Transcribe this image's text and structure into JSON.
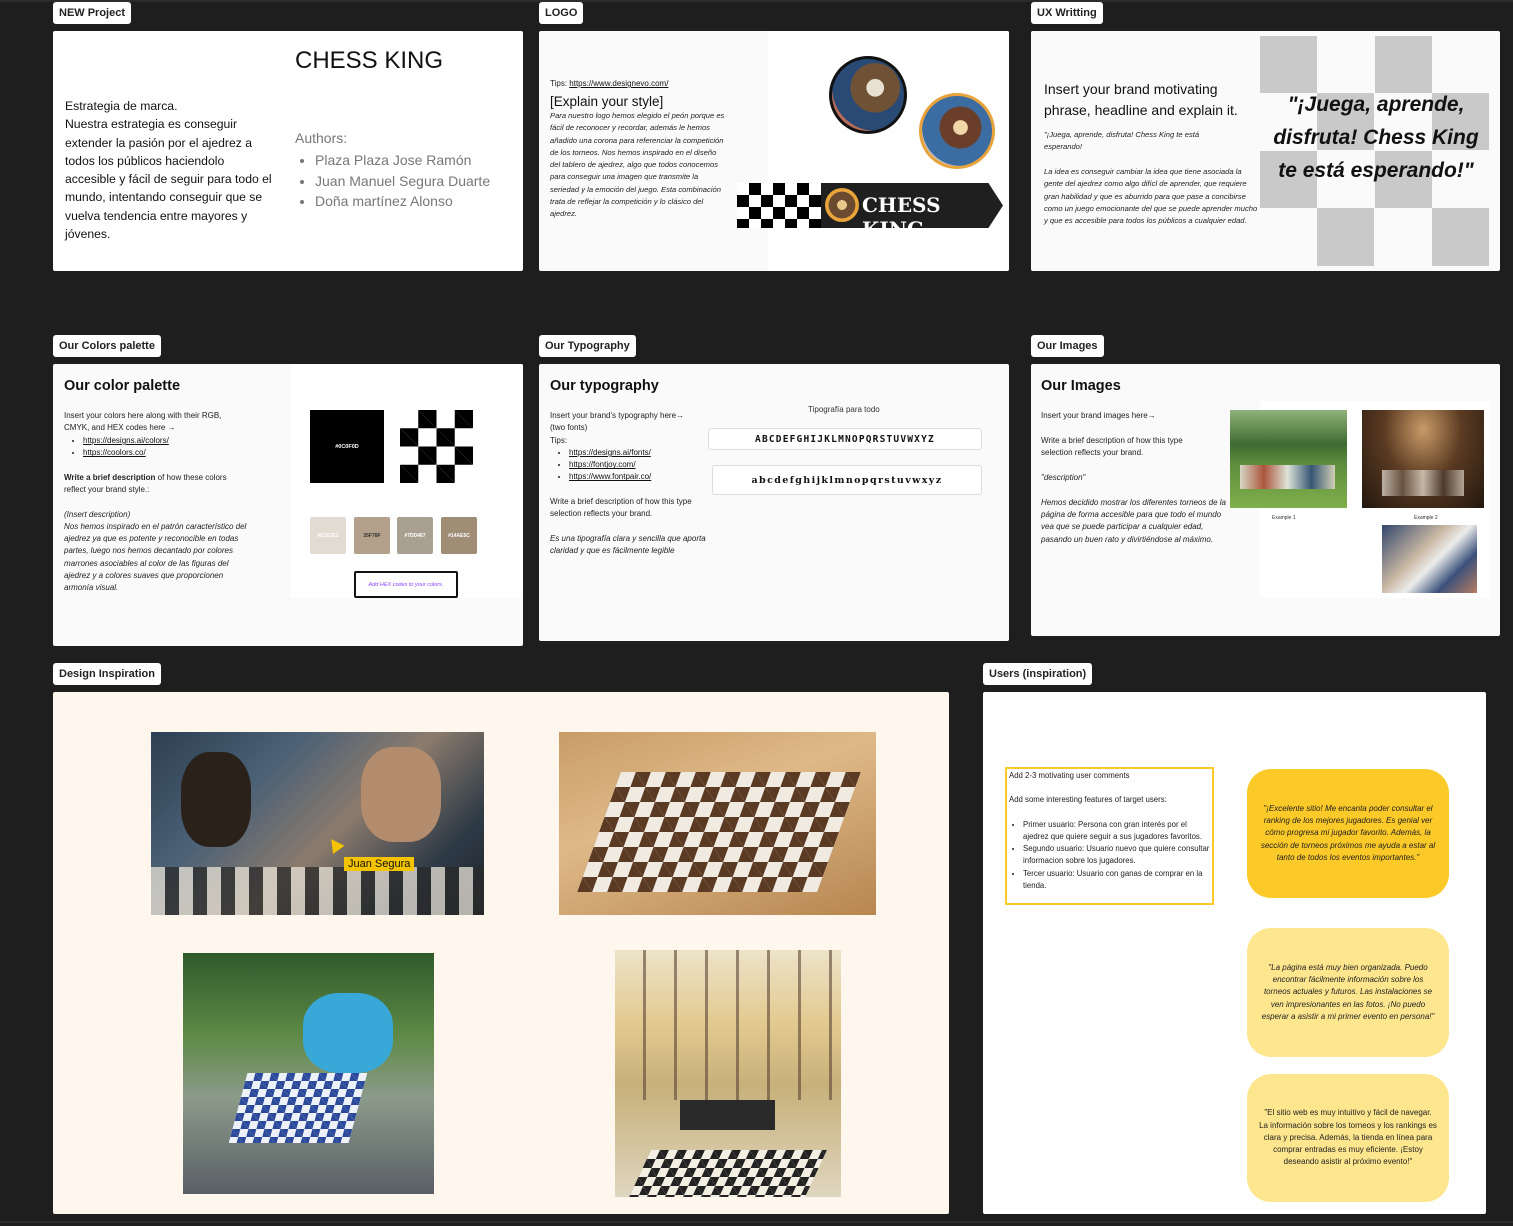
{
  "frames": {
    "new_project": {
      "label": "NEW Project",
      "title": "CHESS KING",
      "strategy_heading": "Estrategia de marca.",
      "strategy_body": "Nuestra estrategia es conseguir extender la pasión por el ajedrez a todos los públicos haciendolo accesible y fácil de seguir para todo el mundo, intentando conseguir que se vuelva tendencia entre mayores y jóvenes.",
      "authors_label": "Authors:",
      "authors": [
        "Plaza Plaza Jose Ramón",
        "Juan Manuel Segura Duarte",
        "Doña martínez Alonso"
      ]
    },
    "logo": {
      "label": "LOGO",
      "tips_prefix": "Tips: ",
      "tips_link": "https://www.designevo.com/",
      "heading": "[Explain your style]",
      "body": "Para nuestro logo hemos elegido el peón porque es fácil de reconocer y recordar, además le hemos añadido  una corona para referenciar la competición de los torneos. Nos hemos  inspirado en el  diseño del tablero de ajedrez, algo que todos conocemos para conseguir una imagen que transmite la seriedad y la emoción del juego. Esta combinación trata de reflejar la competición y lo clásico del ajedrez.",
      "banner_text": "CHESS KING"
    },
    "ux": {
      "label": "UX Writting",
      "heading": "Insert your brand motivating phrase, headline and explain it.",
      "quote_small": "\"¡Juega, aprende, disfruta! Chess King te está esperando!",
      "explanation": "La idea es conseguir cambiar la idea que tiene asociada la gente del ajedrez como algo difícl de aprender, que requiere gran habilidad y que es aburrido para que pase a concibirse como un juego emocionante del que se puede aprender mucho y que es accesible para todos los públicos a cualquier edad.",
      "big_quote": "\"¡Juega, aprende, disfruta! Chess King te está esperando!\""
    },
    "colors": {
      "label": "Our Colors palette",
      "title": "Our color palette",
      "intro": "Insert your colors here along with their RGB, CMYK, and HEX codes here →",
      "links": [
        "https://designs.ai/colors/",
        "https://coolors.co/"
      ],
      "write_bold": "Write a brief description",
      "write_rest": " of how these colors reflect your brand style.:",
      "insert_desc": "(Insert description)",
      "description": "Nos hemos inspirado en el patrón característico del ajedrez ya que es potente y reconocible en todas partes, luego nos hemos decantado por colores marrones asociables al color de las figuras del ajedrez y a colores suaves que proporcionen armonía visual.",
      "main_swatch": "#0C0F0D",
      "main_swatch_color": "#000000",
      "swatches": [
        {
          "code": "#E1E1E1",
          "color": "#e1dbd2"
        },
        {
          "code": "35F78F",
          "color": "#b3a08a"
        },
        {
          "code": "#7DD467",
          "color": "#aaa092"
        },
        {
          "code": "#14AE5C",
          "color": "#9f8d76"
        }
      ],
      "hex_button": "Add HEX codes to your colors."
    },
    "typography": {
      "label": "Our Typography",
      "title": "Our typography",
      "intro": "Insert your brand's typography here→ (two fonts)",
      "tips": "Tips:",
      "links": [
        "https://designs.ai/fonts/",
        "https://fontjoy.com/",
        "https://www.fontpair.co/"
      ],
      "write": "Write a brief description of how this type selection reflects your brand.",
      "desc": "Es una tipografía clara y sencilla que aporta claridad  y que es fácilmente legible",
      "sample_title": "Tipografía para todo",
      "upper": "ABCDEFGHIJKLMNOPQRSTUVWXYZ",
      "lower": "abcdefghijklmnopqrstuvwxyz"
    },
    "images": {
      "label": "Our Images",
      "title": "Our Images",
      "intro": "Insert your brand images here→",
      "write": "Write a brief description of how this type selection reflects your brand.",
      "desc_label": "\"description\"",
      "desc": "Hemos decidido mostrar los diferentes torneos de la página de forma accesible para que todo el mundo vea que se puede participar a cualquier edad, pasando un buen rato y divirtiéndose al máximo.",
      "example1": "Example 1",
      "example2": "Example 2"
    },
    "design": {
      "label": "Design Inspiration",
      "cursor_name": "Juan Segura"
    },
    "users": {
      "label": "Users (inspiration)",
      "box_line1": "Add 2-3 motivating user comments",
      "box_line2": "Add some interesting features of target users:",
      "features": [
        "Primer usuario: Persona con gran interés por el ajedrez que quiere seguir a sus jugadores favoritos.",
        "Segundo usuario: Usuario nuevo que quiere consultar informacion sobre los jugadores.",
        "Tercer usuario: Usuario con ganas de comprar en la tienda."
      ],
      "comments": [
        "\"¡Excelente sitio! Me encanta poder consultar el ranking de los mejores  jugadores. Es genial ver cómo progresa mi jugador favorito. Además, la sección de torneos próximos me ayuda a estar al tanto de todos los  eventos importantes.\"",
        "\"La página está muy bien organizada. Puedo encontrar fácilmente  información sobre los torneos actuales y futuros. Las instalaciones se ven impresionantes en las fotos. ¡No puedo esperar a asistir a mi primer  evento en persona!\"",
        "\"El sitio web es muy intuitivo y fácil de navegar. La información sobre  los torneos y los rankings es clara y precisa. Además, la tienda en  línea para comprar entradas es muy eficiente. ¡Estoy deseando asistir al  próximo evento!\""
      ]
    }
  },
  "colors": {
    "canvas": "#1e1e1e",
    "accent_yellow": "#fbc928",
    "light_yellow": "#fde68e",
    "cream": "#fff6ee",
    "cursor": "#f5c400"
  }
}
